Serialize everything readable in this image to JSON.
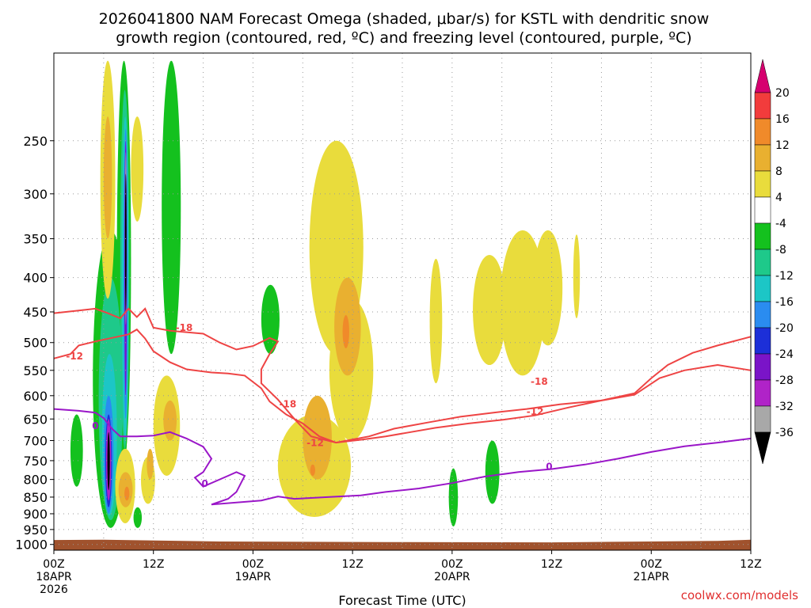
{
  "title": {
    "line1": "2026041800 NAM Forecast Omega (shaded, μbar/s) for KSTL with dendritic snow",
    "line2": "growth region (contoured, red, ºC) and freezing level (contoured, purple, ºC)"
  },
  "credit": "coolwx.com/models",
  "colors": {
    "dgz_contour": "#ee4444",
    "freezing_contour": "#9a16c8",
    "terrain": "#a0522d",
    "grid": "#999999"
  },
  "chart_data": {
    "type": "heatmap",
    "xlabel": "Forecast Time (UTC)",
    "x_range_hours": [
      0,
      84
    ],
    "x_ticks": [
      {
        "h": 0,
        "lines": [
          "00Z",
          "18APR",
          "2026"
        ]
      },
      {
        "h": 12,
        "lines": [
          "12Z"
        ]
      },
      {
        "h": 24,
        "lines": [
          "00Z",
          "19APR"
        ]
      },
      {
        "h": 36,
        "lines": [
          "12Z"
        ]
      },
      {
        "h": 48,
        "lines": [
          "00Z",
          "20APR"
        ]
      },
      {
        "h": 60,
        "lines": [
          "12Z"
        ]
      },
      {
        "h": 72,
        "lines": [
          "00Z",
          "21APR"
        ]
      },
      {
        "h": 84,
        "lines": [
          "12Z"
        ]
      }
    ],
    "y_axis_pressure_hPa": [
      250,
      300,
      350,
      400,
      450,
      500,
      550,
      600,
      650,
      700,
      750,
      800,
      850,
      900,
      950,
      1000
    ],
    "y_range_hPa": [
      185,
      1020
    ],
    "y_scale": "log-pressure",
    "grid": true,
    "colorbar": {
      "placement": "right",
      "levels": [
        20,
        16,
        12,
        8,
        4,
        -4,
        -8,
        -12,
        -16,
        -20,
        -24,
        -28,
        -32,
        -36
      ],
      "colors": [
        "#d6006f",
        "#f23c3c",
        "#f08a2a",
        "#e9b030",
        "#e9dc3c",
        "#ffffff",
        "#14c11e",
        "#1ec98a",
        "#1cc6c6",
        "#2a8cf0",
        "#1c2fd8",
        "#7a14c8",
        "#b023c8",
        "#a8a8a8",
        "#000000"
      ]
    },
    "dgz_contours": [
      {
        "label": "-12",
        "points": [
          [
            0,
            452
          ],
          [
            3,
            448
          ],
          [
            5,
            445
          ],
          [
            6.5,
            452
          ],
          [
            8,
            460
          ],
          [
            9,
            445
          ],
          [
            10,
            458
          ],
          [
            11,
            445
          ],
          [
            12,
            475
          ],
          [
            14,
            480
          ],
          [
            18,
            485
          ],
          [
            20,
            500
          ],
          [
            22,
            512
          ],
          [
            24,
            506
          ],
          [
            26,
            492
          ],
          [
            27,
            498
          ],
          [
            26,
            520
          ],
          [
            25,
            548
          ],
          [
            25,
            575
          ],
          [
            27,
            608
          ],
          [
            29,
            650
          ],
          [
            31,
            690
          ],
          [
            34,
            705
          ],
          [
            37,
            698
          ],
          [
            40,
            690
          ],
          [
            43,
            680
          ],
          [
            46,
            670
          ],
          [
            50,
            660
          ],
          [
            54,
            652
          ],
          [
            58,
            642
          ],
          [
            62,
            625
          ],
          [
            66,
            610
          ],
          [
            70,
            595
          ],
          [
            72,
            565
          ],
          [
            74,
            540
          ],
          [
            77,
            518
          ],
          [
            80,
            505
          ],
          [
            84,
            490
          ]
        ]
      },
      {
        "label": "-12",
        "points": [
          [
            0,
            528
          ],
          [
            2,
            520
          ],
          [
            3,
            505
          ],
          [
            5,
            498
          ],
          [
            7,
            492
          ],
          [
            9,
            486
          ],
          [
            10,
            478
          ],
          [
            11,
            493
          ],
          [
            12,
            515
          ],
          [
            14,
            535
          ],
          [
            16,
            548
          ],
          [
            19,
            554
          ],
          [
            21,
            556
          ],
          [
            23,
            560
          ],
          [
            25,
            585
          ],
          [
            26,
            612
          ],
          [
            28,
            640
          ],
          [
            30,
            660
          ],
          [
            32,
            690
          ],
          [
            34,
            705
          ],
          [
            38,
            690
          ],
          [
            41,
            672
          ],
          [
            45,
            658
          ],
          [
            49,
            645
          ],
          [
            53,
            636
          ],
          [
            57,
            628
          ],
          [
            61,
            618
          ],
          [
            66,
            610
          ],
          [
            70,
            598
          ],
          [
            73,
            565
          ],
          [
            76,
            550
          ],
          [
            80,
            540
          ],
          [
            84,
            550
          ]
        ]
      }
    ],
    "freezing_contour": {
      "label": "0",
      "points": [
        [
          0,
          628
        ],
        [
          3,
          632
        ],
        [
          5,
          636
        ],
        [
          6,
          648
        ],
        [
          7,
          672
        ],
        [
          8,
          690
        ],
        [
          10,
          690
        ],
        [
          12,
          688
        ],
        [
          14,
          680
        ],
        [
          16,
          695
        ],
        [
          18,
          715
        ],
        [
          19,
          745
        ],
        [
          18,
          780
        ],
        [
          17,
          795
        ],
        [
          18,
          820
        ],
        [
          21,
          790
        ],
        [
          22,
          780
        ],
        [
          23,
          790
        ],
        [
          22,
          835
        ],
        [
          21,
          855
        ],
        [
          19,
          872
        ],
        [
          25,
          860
        ],
        [
          27,
          848
        ],
        [
          29,
          855
        ],
        [
          33,
          850
        ],
        [
          37,
          845
        ],
        [
          40,
          835
        ],
        [
          44,
          825
        ],
        [
          48,
          810
        ],
        [
          52,
          792
        ],
        [
          56,
          780
        ],
        [
          60,
          772
        ],
        [
          64,
          760
        ],
        [
          68,
          745
        ],
        [
          72,
          728
        ],
        [
          76,
          714
        ],
        [
          80,
          705
        ],
        [
          84,
          695
        ]
      ]
    },
    "contour_labels": [
      {
        "text": "-18",
        "h": 15.7,
        "p": 475,
        "color": "#ee4444"
      },
      {
        "text": "-12",
        "h": 2.5,
        "p": 524,
        "color": "#ee4444"
      },
      {
        "text": "-18",
        "h": 28.2,
        "p": 618,
        "color": "#ee4444"
      },
      {
        "text": "-12",
        "h": 31.5,
        "p": 706,
        "color": "#ee4444"
      },
      {
        "text": "-18",
        "h": 58.5,
        "p": 572,
        "color": "#ee4444"
      },
      {
        "text": "-12",
        "h": 58.0,
        "p": 634,
        "color": "#ee4444"
      },
      {
        "text": "0",
        "h": 5.0,
        "p": 666,
        "color": "#9a16c8"
      },
      {
        "text": "0",
        "h": 18.2,
        "p": 812,
        "color": "#9a16c8"
      },
      {
        "text": "0",
        "h": 59.7,
        "p": 766,
        "color": "#9a16c8"
      }
    ],
    "omega_blobs": [
      {
        "cls": 6,
        "h0": 4.7,
        "h1": 9.0,
        "p_top": 340,
        "p_bot": 945
      },
      {
        "cls": 6,
        "h0": 7.6,
        "h1": 9.3,
        "p_top": 190,
        "p_bot": 750
      },
      {
        "cls": 6,
        "h0": 13.0,
        "h1": 15.3,
        "p_top": 190,
        "p_bot": 520
      },
      {
        "cls": 6,
        "h0": 2.0,
        "h1": 3.5,
        "p_top": 640,
        "p_bot": 820
      },
      {
        "cls": 6,
        "h0": 25.0,
        "h1": 27.2,
        "p_top": 410,
        "p_bot": 520
      },
      {
        "cls": 6,
        "h0": 9.6,
        "h1": 10.6,
        "p_top": 880,
        "p_bot": 945
      },
      {
        "cls": 6,
        "h0": 47.6,
        "h1": 48.7,
        "p_top": 770,
        "p_bot": 940
      },
      {
        "cls": 6,
        "h0": 52.0,
        "h1": 53.7,
        "p_top": 700,
        "p_bot": 870
      },
      {
        "cls": 7,
        "h0": 5.4,
        "h1": 8.3,
        "p_top": 400,
        "p_bot": 920
      },
      {
        "cls": 7,
        "h0": 8.0,
        "h1": 9.1,
        "p_top": 210,
        "p_bot": 720
      },
      {
        "cls": 8,
        "h0": 5.8,
        "h1": 7.6,
        "p_top": 520,
        "p_bot": 905
      },
      {
        "cls": 8,
        "h0": 8.2,
        "h1": 9.0,
        "p_top": 230,
        "p_bot": 700
      },
      {
        "cls": 9,
        "h0": 6.0,
        "h1": 7.2,
        "p_top": 600,
        "p_bot": 900
      },
      {
        "cls": 9,
        "h0": 8.4,
        "h1": 8.9,
        "p_top": 240,
        "p_bot": 650
      },
      {
        "cls": 10,
        "h0": 6.2,
        "h1": 7.0,
        "p_top": 640,
        "p_bot": 880
      },
      {
        "cls": 11,
        "h0": 8.5,
        "h1": 8.8,
        "p_top": 250,
        "p_bot": 600
      },
      {
        "cls": 12,
        "h0": 6.3,
        "h1": 6.9,
        "p_top": 650,
        "p_bot": 860
      },
      {
        "cls": 13,
        "h0": 8.6,
        "h1": 8.75,
        "p_top": 260,
        "p_bot": 470
      },
      {
        "cls": 14,
        "h0": 6.45,
        "h1": 6.75,
        "p_top": 680,
        "p_bot": 830
      },
      {
        "cls": 14,
        "h0": 8.62,
        "h1": 8.72,
        "p_top": 280,
        "p_bot": 450
      },
      {
        "cls": 4,
        "h0": 5.6,
        "h1": 7.4,
        "p_top": 190,
        "p_bot": 430
      },
      {
        "cls": 4,
        "h0": 9.3,
        "h1": 10.8,
        "p_top": 230,
        "p_bot": 330
      },
      {
        "cls": 4,
        "h0": 7.4,
        "h1": 9.8,
        "p_top": 720,
        "p_bot": 930
      },
      {
        "cls": 4,
        "h0": 12.0,
        "h1": 15.2,
        "p_top": 560,
        "p_bot": 790
      },
      {
        "cls": 4,
        "h0": 10.5,
        "h1": 12.2,
        "p_top": 740,
        "p_bot": 870
      },
      {
        "cls": 4,
        "h0": 30.8,
        "h1": 37.3,
        "p_top": 250,
        "p_bot": 520
      },
      {
        "cls": 4,
        "h0": 33.2,
        "h1": 38.5,
        "p_top": 430,
        "p_bot": 700
      },
      {
        "cls": 4,
        "h0": 27.0,
        "h1": 35.8,
        "p_top": 640,
        "p_bot": 910
      },
      {
        "cls": 4,
        "h0": 45.3,
        "h1": 46.8,
        "p_top": 375,
        "p_bot": 575
      },
      {
        "cls": 4,
        "h0": 50.5,
        "h1": 54.5,
        "p_top": 370,
        "p_bot": 540
      },
      {
        "cls": 4,
        "h0": 53.8,
        "h1": 59.2,
        "p_top": 340,
        "p_bot": 560
      },
      {
        "cls": 4,
        "h0": 57.8,
        "h1": 61.3,
        "p_top": 340,
        "p_bot": 505
      },
      {
        "cls": 4,
        "h0": 62.6,
        "h1": 63.4,
        "p_top": 345,
        "p_bot": 460
      },
      {
        "cls": 3,
        "h0": 6.0,
        "h1": 7.0,
        "p_top": 230,
        "p_bot": 350
      },
      {
        "cls": 3,
        "h0": 7.8,
        "h1": 9.5,
        "p_top": 780,
        "p_bot": 880
      },
      {
        "cls": 3,
        "h0": 13.2,
        "h1": 14.8,
        "p_top": 610,
        "p_bot": 700
      },
      {
        "cls": 3,
        "h0": 11.2,
        "h1": 12.0,
        "p_top": 720,
        "p_bot": 800
      },
      {
        "cls": 3,
        "h0": 33.8,
        "h1": 37.0,
        "p_top": 400,
        "p_bot": 560
      },
      {
        "cls": 3,
        "h0": 30.0,
        "h1": 33.5,
        "p_top": 600,
        "p_bot": 800
      },
      {
        "cls": 2,
        "h0": 34.8,
        "h1": 35.6,
        "p_top": 455,
        "p_bot": 510
      },
      {
        "cls": 2,
        "h0": 30.9,
        "h1": 31.5,
        "p_top": 760,
        "p_bot": 790
      },
      {
        "cls": 2,
        "h0": 8.5,
        "h1": 9.1,
        "p_top": 820,
        "p_bot": 860
      }
    ]
  }
}
